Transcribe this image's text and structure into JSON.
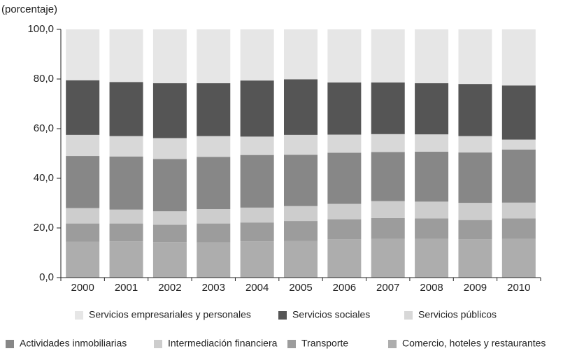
{
  "chart_data": {
    "type": "stacked_bar",
    "y_label": "(porcentaje)",
    "categories": [
      "2000",
      "2001",
      "2002",
      "2003",
      "2004",
      "2005",
      "2006",
      "2007",
      "2008",
      "2009",
      "2010"
    ],
    "series": [
      {
        "name": "Comercio, hoteles y restaurantes",
        "color": "#adadad",
        "values": [
          14.4,
          14.6,
          14.3,
          14.2,
          14.6,
          14.8,
          15.4,
          15.6,
          15.6,
          15.4,
          15.6
        ]
      },
      {
        "name": "Transporte",
        "color": "#9c9c9c",
        "values": [
          7.4,
          7.2,
          7.0,
          7.6,
          7.6,
          8.0,
          8.1,
          8.4,
          8.2,
          7.8,
          8.2
        ]
      },
      {
        "name": "Intermediación financiera",
        "color": "#cdcdcd",
        "values": [
          6.2,
          5.6,
          5.4,
          5.8,
          6.0,
          6.0,
          6.2,
          6.8,
          6.8,
          6.9,
          6.4
        ]
      },
      {
        "name": "Actividades inmobiliarias",
        "color": "#878787",
        "values": [
          21.0,
          21.4,
          21.1,
          21.0,
          21.2,
          20.7,
          20.6,
          19.8,
          20.1,
          20.3,
          21.4
        ]
      },
      {
        "name": "Servicios públicos",
        "color": "#d8d8d8",
        "values": [
          8.5,
          8.2,
          8.4,
          8.4,
          7.4,
          8.0,
          7.3,
          7.2,
          7.0,
          6.6,
          4.0
        ]
      },
      {
        "name": "Servicios sociales",
        "color": "#555555",
        "values": [
          22.0,
          21.8,
          22.1,
          21.3,
          22.6,
          22.4,
          21.0,
          20.8,
          20.6,
          21.0,
          21.8
        ]
      },
      {
        "name": "Servicios empresariales y personales",
        "color": "#e6e6e6",
        "values": [
          20.5,
          21.2,
          21.7,
          21.7,
          20.6,
          20.1,
          21.4,
          21.4,
          21.7,
          22.0,
          22.6
        ]
      }
    ],
    "ylim": [
      0,
      100
    ],
    "yticks": [
      {
        "value": 0,
        "label": "0,0"
      },
      {
        "value": 20,
        "label": "20,0"
      },
      {
        "value": 40,
        "label": "40,0"
      },
      {
        "value": 60,
        "label": "60,0"
      },
      {
        "value": 80,
        "label": "80,0"
      },
      {
        "value": 100,
        "label": "100,0"
      }
    ]
  }
}
